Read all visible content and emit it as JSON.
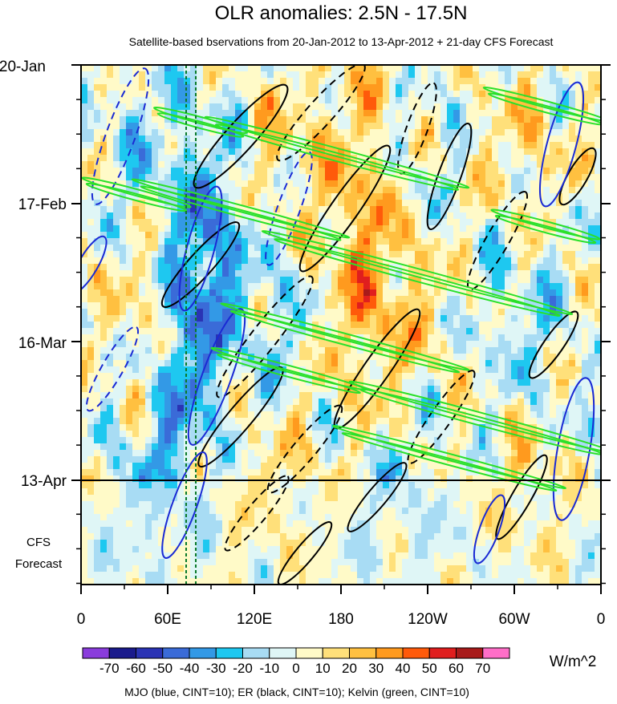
{
  "chart_data": {
    "type": "heatmap",
    "title": "OLR anomalies: 2.5N - 17.5N",
    "subtitle": "Satellite-based bservations from 20-Jan-2012 to 13-Apr-2012 + 21-day CFS Forecast",
    "x_ticks": [
      "0",
      "60E",
      "120E",
      "180",
      "120W",
      "60W",
      "0"
    ],
    "y_ticks": [
      "20-Jan",
      "17-Feb",
      "16-Mar",
      "13-Apr"
    ],
    "forecast_label": [
      "CFS",
      "Forecast"
    ],
    "forecast_start": "13-Apr",
    "colorbar": {
      "unit": "W/m^2",
      "labels": [
        "-70",
        "-60",
        "-50",
        "-40",
        "-30",
        "-20",
        "-10",
        "0",
        "10",
        "20",
        "30",
        "40",
        "50",
        "60",
        "70"
      ],
      "colors": [
        "#8a3cdc",
        "#1a1a8c",
        "#2a33b4",
        "#3a6bd8",
        "#3399e6",
        "#1ec8f0",
        "#a8dcf4",
        "#dff6f6",
        "#fffac8",
        "#ffe07a",
        "#ffc040",
        "#ff9a1e",
        "#ff5a0a",
        "#e01e1e",
        "#a81a1a",
        "#ff6ec8"
      ]
    },
    "footer": "MJO (blue, CINT=10); ER (black, CINT=10); Kelvin (green, CINT=10)",
    "contour_colors": {
      "mjo": "#1a2ad4",
      "er": "#000000",
      "kelvin": "#2ae02a",
      "marker": "#0a7a2a"
    }
  }
}
